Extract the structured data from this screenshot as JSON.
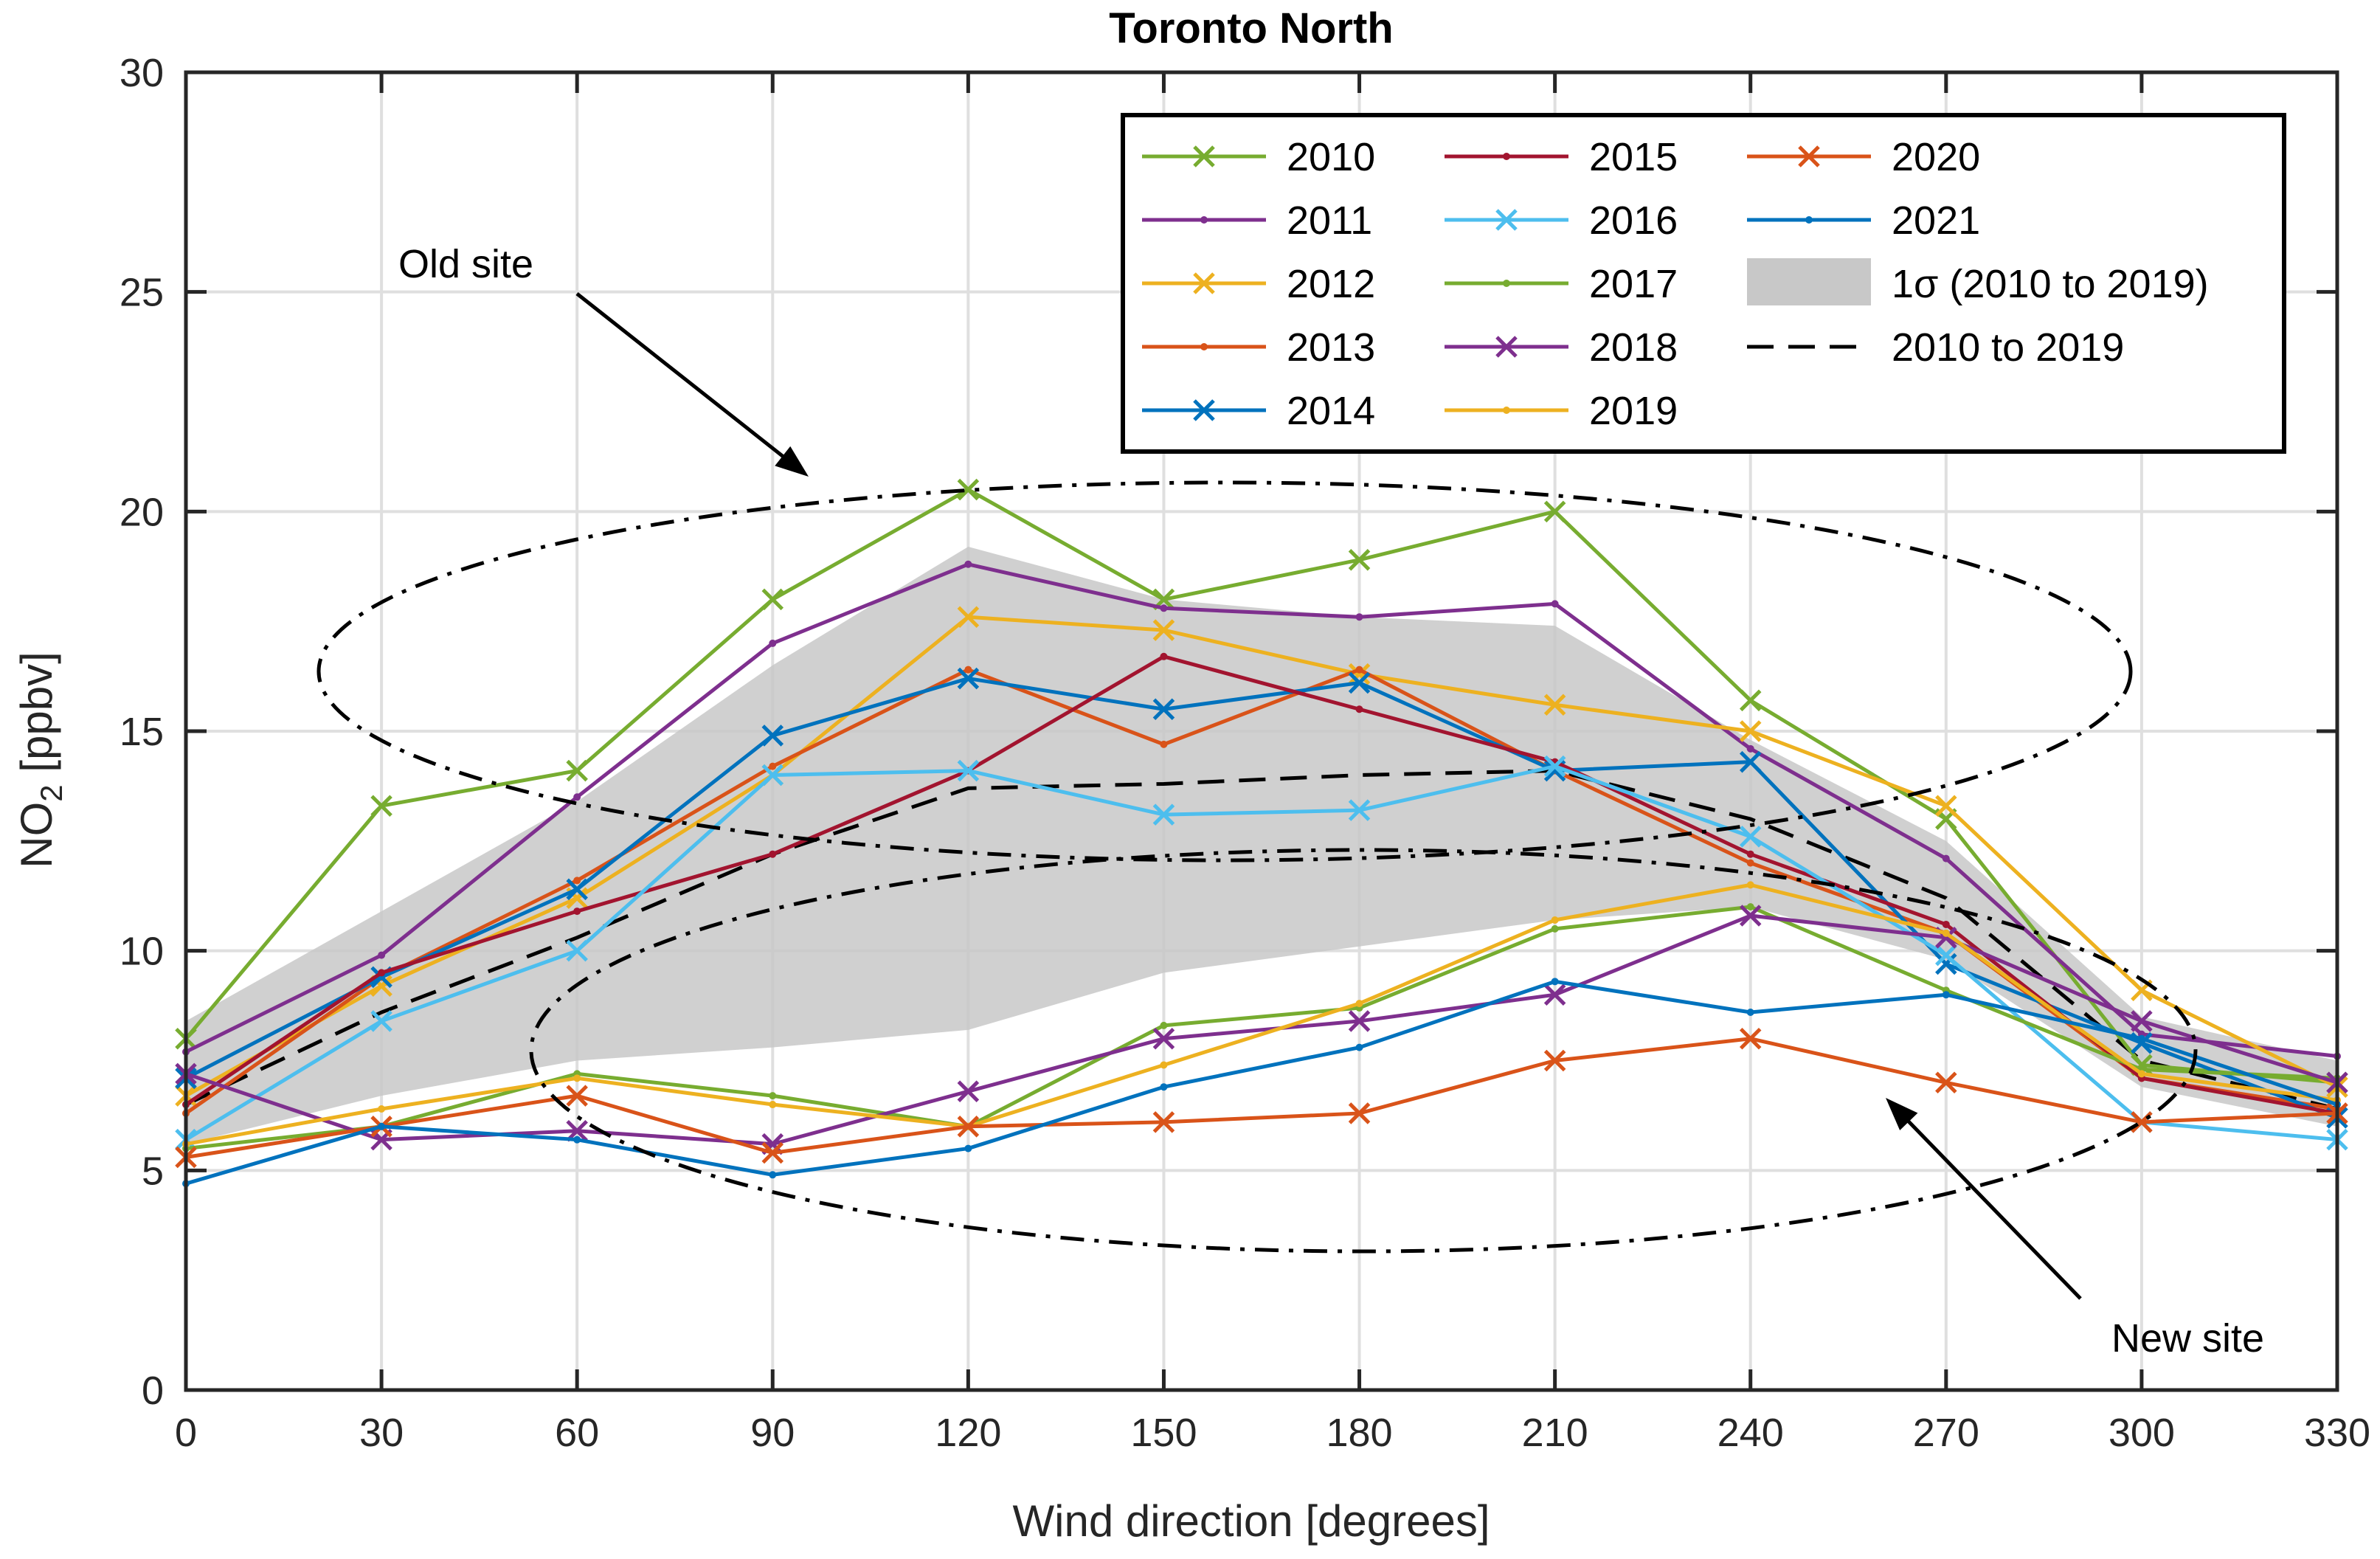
{
  "chart_data": {
    "type": "line",
    "title": "Toronto North",
    "xlabel": "Wind direction [degrees]",
    "ylabel_main": "NO",
    "ylabel_sub": "2",
    "ylabel_unit": " [ppbv]",
    "xlim": [
      0,
      330
    ],
    "ylim": [
      0,
      30
    ],
    "x_ticks": [
      0,
      30,
      60,
      90,
      120,
      150,
      180,
      210,
      240,
      270,
      300,
      330
    ],
    "y_ticks": [
      0,
      5,
      10,
      15,
      20,
      25,
      30
    ],
    "grid": true,
    "legend_placement": "top-right",
    "x": [
      0,
      30,
      60,
      90,
      120,
      150,
      180,
      210,
      240,
      270,
      300,
      330
    ],
    "series": [
      {
        "name": "2010",
        "color": "#77AC30",
        "marker": "x",
        "values": [
          8.0,
          13.3,
          14.1,
          18.0,
          20.5,
          18.0,
          18.9,
          20.0,
          15.7,
          13.0,
          7.4,
          7.0
        ]
      },
      {
        "name": "2011",
        "color": "#7E2F8E",
        "marker": "dot",
        "values": [
          7.7,
          9.9,
          13.5,
          17.0,
          18.8,
          17.8,
          17.6,
          17.9,
          14.6,
          12.1,
          8.1,
          7.6
        ]
      },
      {
        "name": "2012",
        "color": "#EDB120",
        "marker": "x",
        "values": [
          6.7,
          9.2,
          11.2,
          14.0,
          17.6,
          17.3,
          16.3,
          15.6,
          15.0,
          13.3,
          9.1,
          6.9
        ]
      },
      {
        "name": "2013",
        "color": "#D95319",
        "marker": "dot",
        "values": [
          6.3,
          9.4,
          11.6,
          14.2,
          16.4,
          14.7,
          16.4,
          14.1,
          12.0,
          10.4,
          7.1,
          6.4
        ]
      },
      {
        "name": "2014",
        "color": "#0072BD",
        "marker": "x",
        "values": [
          7.1,
          9.4,
          11.4,
          14.9,
          16.2,
          15.5,
          16.1,
          14.1,
          14.3,
          9.7,
          7.9,
          6.2
        ]
      },
      {
        "name": "2015",
        "color": "#A2142F",
        "marker": "dot",
        "values": [
          6.5,
          9.5,
          10.9,
          12.2,
          14.1,
          16.7,
          15.5,
          14.3,
          12.2,
          10.6,
          7.1,
          6.3
        ]
      },
      {
        "name": "2016",
        "color": "#4DBEEE",
        "marker": "x",
        "values": [
          5.7,
          8.4,
          10.0,
          14.0,
          14.1,
          13.1,
          13.2,
          14.2,
          12.6,
          9.9,
          6.1,
          5.7
        ]
      },
      {
        "name": "2017",
        "color": "#77AC30",
        "marker": "dot",
        "values": [
          5.5,
          6.0,
          7.2,
          6.7,
          6.0,
          8.3,
          8.7,
          10.5,
          11.0,
          9.1,
          7.3,
          7.1
        ]
      },
      {
        "name": "2018",
        "color": "#7E2F8E",
        "marker": "x",
        "values": [
          7.2,
          5.7,
          5.9,
          5.6,
          6.8,
          8.0,
          8.4,
          9.0,
          10.8,
          10.3,
          8.4,
          7.0
        ]
      },
      {
        "name": "2019",
        "color": "#EDB120",
        "marker": "dot",
        "values": [
          5.6,
          6.4,
          7.1,
          6.5,
          6.0,
          7.4,
          8.8,
          10.7,
          11.5,
          10.4,
          7.2,
          6.6
        ]
      },
      {
        "name": "2020",
        "color": "#D95319",
        "marker": "x",
        "values": [
          5.3,
          6.0,
          6.7,
          5.4,
          6.0,
          6.1,
          6.3,
          7.5,
          8.0,
          7.0,
          6.1,
          6.3
        ]
      },
      {
        "name": "2021",
        "color": "#0072BD",
        "marker": "dot",
        "values": [
          4.7,
          6.0,
          5.7,
          4.9,
          5.5,
          6.9,
          7.8,
          9.3,
          8.6,
          9.0,
          8.0,
          6.5
        ]
      }
    ],
    "mean_2010_2019": [
      6.5,
      8.6,
      10.3,
      12.2,
      13.7,
      13.8,
      14.0,
      14.1,
      13.0,
      11.2,
      7.5,
      6.4
    ],
    "sigma_lower": [
      5.6,
      6.7,
      7.5,
      7.8,
      8.2,
      9.5,
      10.1,
      10.7,
      11.0,
      9.8,
      6.9,
      6.0
    ],
    "sigma_upper": [
      8.4,
      10.9,
      13.4,
      16.5,
      19.2,
      18.0,
      17.6,
      17.4,
      14.8,
      12.5,
      8.5,
      7.5
    ],
    "legend": {
      "sigma_label": "1σ (2010 to 2019)",
      "mean_label": "2010 to 2019"
    },
    "annotations": {
      "old_site": "Old site",
      "new_site": "New site"
    },
    "colors": {
      "axis": "#262626",
      "grid": "#dfdfdf",
      "band": "#c8c8c8"
    }
  }
}
